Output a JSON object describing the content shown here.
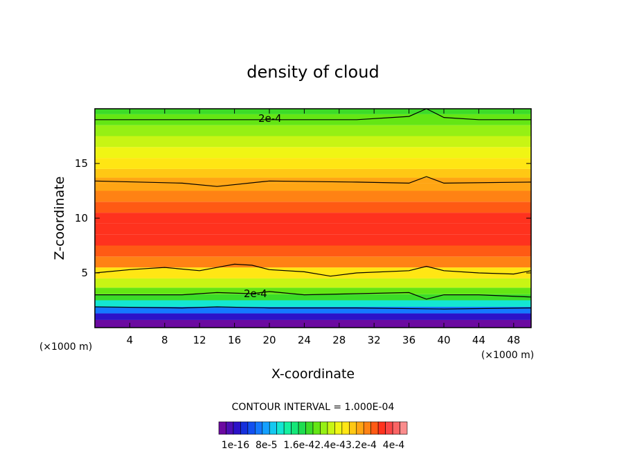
{
  "chart_data": {
    "type": "heatmap",
    "title": "density of cloud",
    "xlabel": "X-coordinate",
    "ylabel": "Z-coordinate",
    "x_unit": "(×1000 m)",
    "y_unit": "(×1000 m)",
    "xlim": [
      0,
      50
    ],
    "ylim": [
      0,
      20
    ],
    "x_ticks": [
      4,
      8,
      12,
      16,
      20,
      24,
      28,
      32,
      36,
      40,
      44,
      48
    ],
    "y_ticks": [
      5,
      10,
      15
    ],
    "contour_interval_text": "CONTOUR INTERVAL = 1.000E-04",
    "contour_labels": [
      "2e-4",
      "2e-4"
    ],
    "colorbar_labels": [
      "1e-16",
      "8e-5",
      "1.6e-4",
      "2.4e-4",
      "3.2e-4",
      "4e-4"
    ],
    "colorbar_label_text": "1e-16  8e-5  1.6e-42.4e-43.2e-4  4e-4",
    "colorbar_colors": [
      "#6b0aa0",
      "#4c0fb4",
      "#2c12c8",
      "#1630dc",
      "#1250f0",
      "#1478ff",
      "#14a0ff",
      "#14c8f0",
      "#14e6d2",
      "#14f0a0",
      "#14e678",
      "#1edc50",
      "#3cdc28",
      "#64e614",
      "#96f014",
      "#c8f514",
      "#f0f514",
      "#ffe614",
      "#ffc814",
      "#ffa514",
      "#ff8214",
      "#ff5a14",
      "#ff321e",
      "#fa4646",
      "#fa6464",
      "#fa8c8c"
    ],
    "vertical_profile": [
      {
        "z": 0.4,
        "value": 1e-06
      },
      {
        "z": 1.0,
        "value": 4e-05
      },
      {
        "z": 1.6,
        "value": 8.5e-05
      },
      {
        "z": 2.2,
        "value": 0.00013
      },
      {
        "z": 2.8,
        "value": 0.00019
      },
      {
        "z": 3.3,
        "value": 0.000215
      },
      {
        "z": 4.0,
        "value": 0.000245
      },
      {
        "z": 5.0,
        "value": 0.000275
      },
      {
        "z": 6.0,
        "value": 0.00031
      },
      {
        "z": 7.0,
        "value": 0.00033
      },
      {
        "z": 8.0,
        "value": 0.000345
      },
      {
        "z": 9.0,
        "value": 0.00035
      },
      {
        "z": 10.0,
        "value": 0.000345
      },
      {
        "z": 11.0,
        "value": 0.00033
      },
      {
        "z": 12.0,
        "value": 0.00031
      },
      {
        "z": 13.0,
        "value": 0.000295
      },
      {
        "z": 13.4,
        "value": 0.0003
      },
      {
        "z": 14.0,
        "value": 0.00028
      },
      {
        "z": 15.0,
        "value": 0.000265
      },
      {
        "z": 16.0,
        "value": 0.00025
      },
      {
        "z": 17.0,
        "value": 0.000235
      },
      {
        "z": 18.0,
        "value": 0.00022
      },
      {
        "z": 19.0,
        "value": 0.0002
      },
      {
        "z": 20.0,
        "value": 0.000185
      }
    ],
    "contours": [
      {
        "level": 0.0002,
        "points": [
          [
            0,
            19.0
          ],
          [
            10,
            19.0
          ],
          [
            20,
            19.0
          ],
          [
            30,
            19.0
          ],
          [
            36,
            19.3
          ],
          [
            38,
            20.0
          ],
          [
            40,
            19.2
          ],
          [
            44,
            19.0
          ],
          [
            50,
            19.0
          ]
        ]
      },
      {
        "level": 0.0003,
        "points": [
          [
            0,
            13.4
          ],
          [
            10,
            13.2
          ],
          [
            14,
            12.9
          ],
          [
            20,
            13.4
          ],
          [
            30,
            13.3
          ],
          [
            36,
            13.2
          ],
          [
            38,
            13.8
          ],
          [
            40,
            13.2
          ],
          [
            50,
            13.3
          ]
        ]
      },
      {
        "level": 0.0003,
        "points": [
          [
            0,
            5.0
          ],
          [
            4,
            5.3
          ],
          [
            6,
            5.4
          ],
          [
            8,
            5.5
          ],
          [
            12,
            5.2
          ],
          [
            16,
            5.8
          ],
          [
            18,
            5.7
          ],
          [
            20,
            5.3
          ],
          [
            24,
            5.1
          ],
          [
            27,
            4.7
          ],
          [
            30,
            5.0
          ],
          [
            36,
            5.2
          ],
          [
            38,
            5.6
          ],
          [
            40,
            5.2
          ],
          [
            44,
            5.0
          ],
          [
            48,
            4.9
          ],
          [
            50,
            5.2
          ]
        ]
      },
      {
        "level": 0.0002,
        "points": [
          [
            0,
            3.0
          ],
          [
            10,
            3.0
          ],
          [
            14,
            3.2
          ],
          [
            18,
            3.1
          ],
          [
            20,
            3.3
          ],
          [
            24,
            3.0
          ],
          [
            30,
            3.1
          ],
          [
            36,
            3.2
          ],
          [
            38,
            2.6
          ],
          [
            40,
            3.0
          ],
          [
            44,
            3.0
          ],
          [
            50,
            2.8
          ]
        ]
      },
      {
        "level": 0.0001,
        "points": [
          [
            0,
            1.9
          ],
          [
            10,
            1.8
          ],
          [
            14,
            1.9
          ],
          [
            20,
            1.8
          ],
          [
            30,
            1.8
          ],
          [
            40,
            1.7
          ],
          [
            50,
            1.8
          ]
        ]
      }
    ]
  }
}
